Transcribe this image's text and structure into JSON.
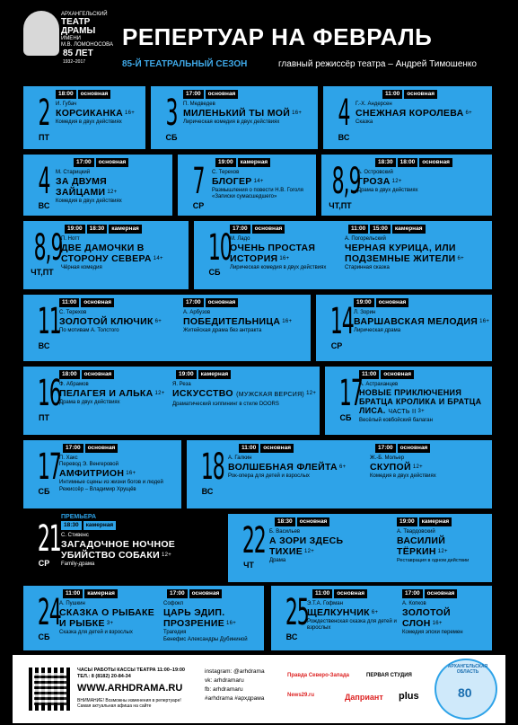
{
  "header": {
    "logo_line1": "АРХАНГЕЛЬСКИЙ",
    "logo_line2": "ТЕАТР",
    "logo_line3": "ДРАМЫ",
    "logo_line4": "ИМЕНИ",
    "logo_line5": "М.В. ЛОМОНОСОВА",
    "logo_anniv": "85 ЛЕТ",
    "logo_years": "1932–2017",
    "title": "РЕПЕРТУАР НА ФЕВРАЛЬ",
    "season": "85-Й ТЕАТРАЛЬНЫЙ СЕЗОН",
    "director": "главный режиссёр театра – Андрей Тимошенко"
  },
  "events": {
    "e2": {
      "day": "2",
      "weekday": "ПТ",
      "time": "18:00",
      "stage": "основная",
      "author": "И. Губач",
      "title": "КОРСИКАНКА",
      "age": "16+",
      "genre": "Комедия в двух действиях"
    },
    "e3": {
      "day": "3",
      "weekday": "СБ",
      "time": "17:00",
      "stage": "основная",
      "author": "П. Медведев",
      "title": "МИЛЕНЬКИЙ ТЫ МОЙ",
      "age": "16+",
      "genre": "Лирическая комедия в двух действиях"
    },
    "e4a": {
      "day": "4",
      "weekday": "ВС",
      "time": "11:00",
      "stage": "основная",
      "author": "Г.-Х. Андерсен",
      "title": "СНЕЖНАЯ КОРОЛЕВА",
      "age": "6+",
      "genre": "Сказка"
    },
    "e4b": {
      "day": "4",
      "weekday": "ВС",
      "time": "17:00",
      "stage": "основная",
      "author": "М. Старицкий",
      "title": "ЗА ДВУМЯ ЗАЙЦАМИ",
      "age": "12+",
      "genre": "Комедия в двух действиях"
    },
    "e7": {
      "day": "7",
      "weekday": "СР",
      "time": "19:00",
      "stage": "камерная",
      "author": "С. Терехов",
      "title": "БЛОГЕР",
      "age": "14+",
      "genre": "Размышления о повести Н.В. Гоголя «Записки сумасшедшего»"
    },
    "e89a": {
      "day": "8,9",
      "weekday": "ЧТ,ПТ",
      "time1": "18:30",
      "time2": "18:00",
      "stage": "основная",
      "author": "А. Островский",
      "title": "ГРОЗА",
      "age": "12+",
      "genre": "Драма в двух действиях"
    },
    "e89b": {
      "day": "8,9",
      "weekday": "ЧТ,ПТ",
      "time1": "19:00",
      "time2": "18:30",
      "stage": "камерная",
      "author": "П. Нотт",
      "title": "ДВЕ ДАМОЧКИ В СТОРОНУ СЕВЕРА",
      "age": "14+",
      "genre": "Чёрная комедия"
    },
    "e10a": {
      "day": "10",
      "weekday": "СБ",
      "time": "17:00",
      "stage": "основная",
      "author": "М. Ладо",
      "title": "ОЧЕНЬ ПРОСТАЯ ИСТОРИЯ",
      "age": "16+",
      "genre": "Лирическая комедия в двух действиях"
    },
    "e10b": {
      "time1": "11:00",
      "time2": "15:00",
      "stage": "камерная",
      "author": "А. Погорельский",
      "title": "ЧЕРНАЯ КУРИЦА, ИЛИ ПОДЗЕМНЫЕ ЖИТЕЛИ",
      "age": "6+",
      "genre": "Старинная сказка"
    },
    "e11a": {
      "day": "11",
      "weekday": "ВС",
      "time": "11:00",
      "stage": "основная",
      "author": "С. Терехов",
      "title": "ЗОЛОТОЙ КЛЮЧИК",
      "age": "6+",
      "genre": "По мотивам А. Толстого"
    },
    "e11b": {
      "time": "17:00",
      "stage": "основная",
      "author": "А. Арбузов",
      "title": "ПОБЕДИТЕЛЬНИЦА",
      "age": "16+",
      "genre": "Житейская драма без антракта"
    },
    "e14": {
      "day": "14",
      "weekday": "СР",
      "time": "19:00",
      "stage": "основная",
      "author": "Л. Зорин",
      "title": "ВАРШАВСКАЯ МЕЛОДИЯ",
      "age": "16+",
      "genre": "Лирическая драма"
    },
    "e16a": {
      "day": "16",
      "weekday": "ПТ",
      "time": "18:00",
      "stage": "основная",
      "author": "Ф. Абрамов",
      "title": "ПЕЛАГЕЯ И АЛЬКА",
      "age": "12+",
      "genre": "Драма в двух действиях"
    },
    "e16b": {
      "time": "19:00",
      "stage": "камерная",
      "author": "Я. Реза",
      "title": "ИСКУССТВО",
      "subtitle": "(МУЖСКАЯ ВЕРСИЯ)",
      "age": "12+",
      "genre": "Драматический хэппининг в стиле DOORS"
    },
    "e17a": {
      "day": "17",
      "weekday": "СБ",
      "time": "11:00",
      "stage": "основная",
      "author": "А. Астраханцев",
      "title": "НОВЫЕ ПРИКЛЮЧЕНИЯ БРАТЦА КРОЛИКА И БРАТЦА ЛИСА.",
      "subtitle": "ЧАСТЬ II",
      "age": "3+",
      "genre": "Весёлый ковбойский балаган"
    },
    "e17b": {
      "day": "17",
      "weekday": "СБ",
      "time": "17:00",
      "stage": "основная",
      "author": "П. Хакс",
      "author2": "Перевод Э. Венгеровой",
      "title": "АМФИТРИОН",
      "age": "16+",
      "genre": "Интимные сцены из жизни богов и людей",
      "genre2": "Режиссёр – Владимир Хрущёв"
    },
    "e18a": {
      "day": "18",
      "weekday": "ВС",
      "time": "11:00",
      "stage": "основная",
      "author": "А. Галкин",
      "title": "ВОЛШЕБНАЯ ФЛЕЙТА",
      "age": "6+",
      "genre": "Рок-опера для детей и взрослых"
    },
    "e18b": {
      "time": "17:00",
      "stage": "основная",
      "author": "Ж.-Б. Мольер",
      "title": "СКУПОЙ",
      "age": "12+",
      "genre": "Комедия в двух действиях"
    },
    "e21": {
      "day": "21",
      "weekday": "СР",
      "premiere": "ПРЕМЬЕРА",
      "time": "18:30",
      "stage": "камерная",
      "author": "С. Стивенс",
      "title": "ЗАГАДОЧНОЕ НОЧНОЕ УБИЙСТВО СОБАКИ",
      "age": "12+",
      "genre": "Family-драма"
    },
    "e22a": {
      "day": "22",
      "weekday": "ЧТ",
      "time": "18:30",
      "stage": "основная",
      "author": "Б. Васильев",
      "title": "А ЗОРИ ЗДЕСЬ ТИХИЕ",
      "age": "12+",
      "genre": "Драма"
    },
    "e22b": {
      "time": "19:00",
      "stage": "камерная",
      "author": "А. Твардовский",
      "title": "ВАСИЛИЙ ТЁРКИН",
      "age": "12+",
      "genre": "Реставрация в одном действии"
    },
    "e24a": {
      "day": "24",
      "weekday": "СБ",
      "time": "11:00",
      "stage": "камерная",
      "author": "А. Пушкин",
      "title": "СКАЗКА О РЫБАКЕ И РЫБКЕ",
      "age": "3+",
      "genre": "Сказка для детей и взрослых"
    },
    "e24b": {
      "time": "17:00",
      "stage": "основная",
      "author": "Софокл",
      "title": "ЦАРЬ ЭДИП. ПРОЗРЕНИЕ",
      "age": "16+",
      "genre": "Трагедия",
      "genre2": "Бенефис Александры Дубининой"
    },
    "e25a": {
      "day": "25",
      "weekday": "ВС",
      "time": "11:00",
      "stage": "основная",
      "author": "Э.Т.А. Гофман",
      "title": "ЩЕЛКУНЧИК",
      "age": "6+",
      "genre": "Рождественская сказка для детей и взрослых"
    },
    "e25b": {
      "time": "17:00",
      "stage": "основная",
      "author": "А. Копков",
      "title": "ЗОЛОТОЙ СЛОН",
      "age": "16+",
      "genre": "Комедия эпохи перемен"
    }
  },
  "footer": {
    "hours": "ЧАСЫ РАБОТЫ КАССЫ ТЕАТРА 11:00–19:00",
    "phone": "ТЕЛ.: 8 (8182) 20-84-34",
    "site": "WWW.ARHDRAMA.RU",
    "note1": "ВНИМАНИЕ! Возможны изменения в репертуаре!",
    "note2": "Самая актуальная афиша на сайте",
    "instagram": "instagram: @arhdrama",
    "vk": "vk: arhdramaru",
    "fb": "fb: arhdramaru",
    "hashtags": "#arhdrama #архдрама",
    "sp1": "Правда Северо-Запада",
    "sp2": "ПЕРВАЯ СТУДИЯ",
    "sp3": "News29.ru",
    "sp4": "Даприант",
    "sp5": "plus",
    "region_label": "АРХАНГЕЛЬСКАЯ ОБЛАСТЬ",
    "region_num": "80"
  }
}
